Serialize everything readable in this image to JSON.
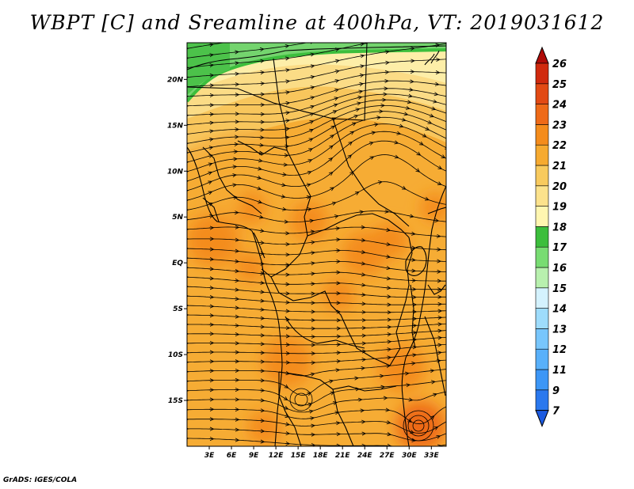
{
  "title": "WBPT [C] and Sreamline at 400hPa, VT: 2019031612",
  "credit": "GrADS: IGES/COLA",
  "chart_data": {
    "type": "heatmap",
    "title": "WBPT [C] and Sreamline at 400hPa, VT: 2019031612",
    "variable": "WBPT [C]",
    "overlay": "streamlines",
    "level": "400hPa",
    "valid_time": "2019031612",
    "xlim": [
      0,
      35
    ],
    "ylim": [
      -20,
      24
    ],
    "x_ticks": [
      {
        "value": 3,
        "label": "3E"
      },
      {
        "value": 6,
        "label": "6E"
      },
      {
        "value": 9,
        "label": "9E"
      },
      {
        "value": 12,
        "label": "12E"
      },
      {
        "value": 15,
        "label": "15E"
      },
      {
        "value": 18,
        "label": "18E"
      },
      {
        "value": 21,
        "label": "21E"
      },
      {
        "value": 24,
        "label": "24E"
      },
      {
        "value": 27,
        "label": "27E"
      },
      {
        "value": 30,
        "label": "30E"
      },
      {
        "value": 33,
        "label": "33E"
      }
    ],
    "y_ticks": [
      {
        "value": 20,
        "label": "20N"
      },
      {
        "value": 15,
        "label": "15N"
      },
      {
        "value": 10,
        "label": "10N"
      },
      {
        "value": 5,
        "label": "5N"
      },
      {
        "value": 0,
        "label": "EQ"
      },
      {
        "value": -5,
        "label": "5S"
      },
      {
        "value": -10,
        "label": "10S"
      },
      {
        "value": -15,
        "label": "15S"
      }
    ],
    "colorbar": {
      "levels": [
        7,
        9,
        11,
        12,
        13,
        14,
        15,
        16,
        17,
        18,
        19,
        20,
        21,
        22,
        23,
        24,
        25,
        26
      ],
      "colors": [
        "#1c5ae0",
        "#2a78ee",
        "#3c96f6",
        "#58b0fa",
        "#78c6fc",
        "#9edcfc",
        "#d4f2fe",
        "#b8f0ae",
        "#78dc72",
        "#3cbe3c",
        "#fff6b0",
        "#fce28c",
        "#f8ca5e",
        "#f6aa30",
        "#f48c1c",
        "#ee6a18",
        "#e24a14",
        "#d02a0e",
        "#b00c08"
      ]
    },
    "field_blobs": [
      {
        "lon": 31.5,
        "lat": -18.7,
        "radius": 1.3,
        "value": 25.2
      },
      {
        "lon": 31.5,
        "lat": -17.8,
        "radius": 3.3,
        "value": 23.4
      },
      {
        "lon": 29.0,
        "lat": -11.5,
        "radius": 3.2,
        "value": 22.6
      },
      {
        "lon": 13.5,
        "lat": -10.8,
        "radius": 3.4,
        "value": 22.8
      },
      {
        "lon": 10.5,
        "lat": -18.0,
        "radius": 2.3,
        "value": 22.5
      },
      {
        "lon": 3.5,
        "lat": 2.5,
        "radius": 3.6,
        "value": 22.8
      },
      {
        "lon": 16.5,
        "lat": 4.5,
        "radius": 2.6,
        "value": 22.6
      },
      {
        "lon": 24.0,
        "lat": 1.0,
        "radius": 3.0,
        "value": 22.5
      },
      {
        "lon": 20.5,
        "lat": -3.5,
        "radius": 2.2,
        "value": 22.4
      },
      {
        "lon": 8.5,
        "lat": 6.0,
        "radius": 2.2,
        "value": 22.3
      },
      {
        "lon": 8.5,
        "lat": -0.5,
        "radius": 2.0,
        "value": 22.2
      },
      {
        "lon": 5.0,
        "lat": 7.0,
        "radius": 2.4,
        "value": 21.8
      },
      {
        "lon": 33.5,
        "lat": 6.0,
        "radius": 2.0,
        "value": 22.0
      },
      {
        "lon": 27.5,
        "lat": 2.5,
        "radius": 2.4,
        "value": 22.0
      }
    ],
    "streamline_flow": "predominantly west-to-east, anticyclonic over northern Sudan, cyclonic eddies near 14E 15S and 31E 18S"
  }
}
